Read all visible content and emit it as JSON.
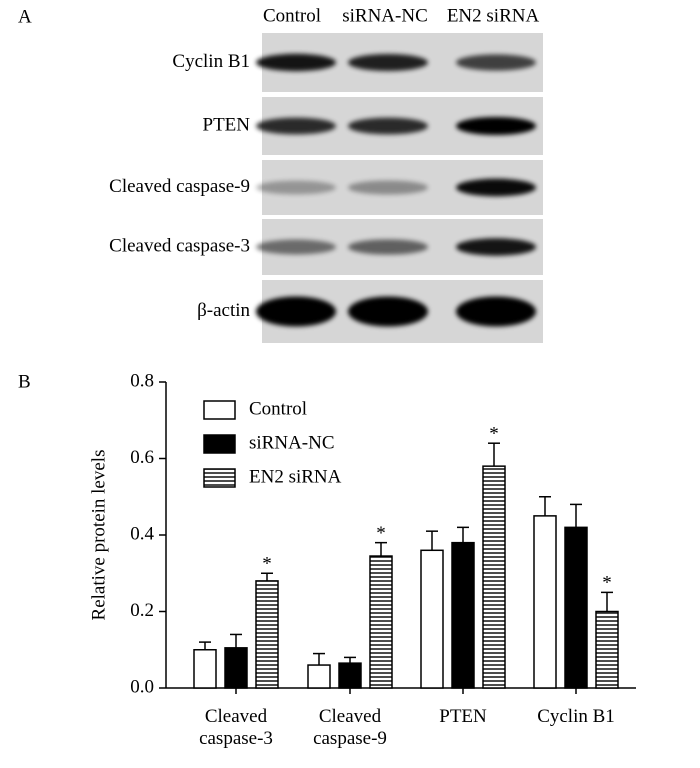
{
  "panel_labels": [
    "A",
    "B"
  ],
  "blot": {
    "lanes": [
      "Control",
      "siRNA-NC",
      "EN2 siRNA"
    ],
    "rows": [
      "Cyclin B1",
      "PTEN",
      "Cleaved caspase-9",
      "Cleaved caspase-3",
      "β-actin"
    ]
  },
  "chart_data": {
    "type": "bar",
    "y_label": "Relative protein levels",
    "categories": [
      "Cleaved caspase-3",
      "Cleaved caspase-9",
      "PTEN",
      "Cyclin B1"
    ],
    "series": [
      {
        "name": "Control",
        "color": "#ffffff",
        "pattern": "none",
        "values": [
          0.1,
          0.06,
          0.36,
          0.45
        ],
        "errors": [
          0.02,
          0.03,
          0.05,
          0.05
        ]
      },
      {
        "name": "siRNA-NC",
        "color": "#000000",
        "pattern": "none",
        "values": [
          0.105,
          0.065,
          0.38,
          0.42
        ],
        "errors": [
          0.035,
          0.015,
          0.04,
          0.06
        ]
      },
      {
        "name": "EN2 siRNA",
        "color": "#ffffff",
        "pattern": "horizontal-lines",
        "values": [
          0.28,
          0.345,
          0.58,
          0.2
        ],
        "errors": [
          0.02,
          0.035,
          0.06,
          0.05
        ],
        "significance": [
          "*",
          "*",
          "*",
          "*"
        ]
      }
    ],
    "ylim": [
      0,
      0.8
    ],
    "yticks": [
      {
        "value": 0,
        "label": "0.0"
      },
      0.2,
      0.4,
      0.6,
      0.8
    ],
    "legend": "upper-left"
  }
}
